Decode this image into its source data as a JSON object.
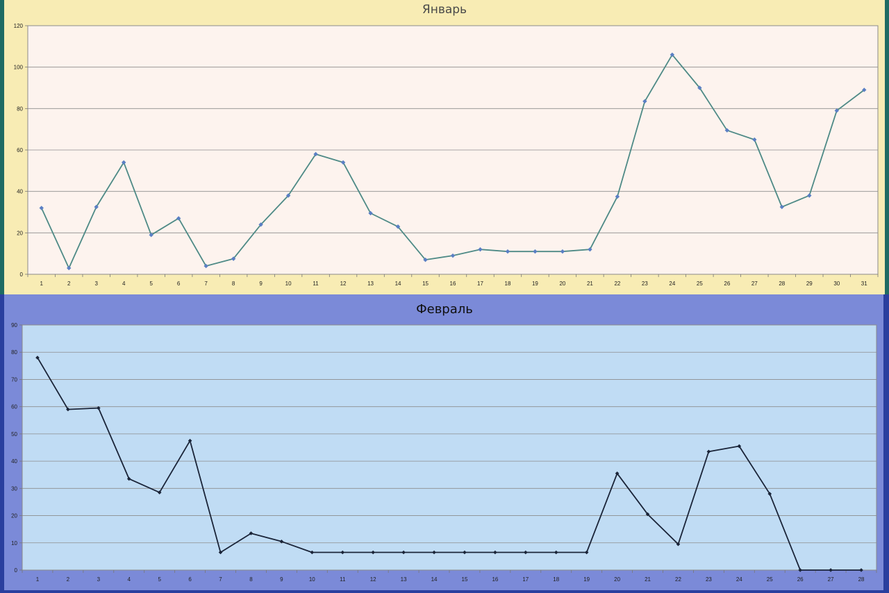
{
  "chart_data": [
    {
      "type": "line",
      "title": "Январь",
      "categories": [
        "1",
        "2",
        "3",
        "4",
        "5",
        "6",
        "7",
        "8",
        "9",
        "10",
        "11",
        "12",
        "13",
        "14",
        "15",
        "16",
        "17",
        "18",
        "19",
        "20",
        "21",
        "22",
        "23",
        "24",
        "25",
        "26",
        "27",
        "28",
        "29",
        "30",
        "31"
      ],
      "values": [
        32,
        3,
        32.5,
        54,
        19,
        27,
        4,
        7.5,
        24,
        38,
        58,
        54,
        29.5,
        23,
        7,
        9,
        12,
        11,
        11,
        11,
        12,
        37.5,
        83.5,
        106,
        90,
        69.5,
        65,
        32.5,
        38,
        79,
        89
      ],
      "ylim": [
        0,
        120
      ],
      "yticks": [
        0,
        20,
        40,
        60,
        80,
        100,
        120
      ],
      "grid": true,
      "colors": {
        "line": "#4e8a86",
        "marker": "#5a7fc4",
        "plot_bg": "#fdf3ee",
        "panel_bg": "#f8ecb4"
      }
    },
    {
      "type": "line",
      "title": "Февраль",
      "categories": [
        "1",
        "2",
        "3",
        "4",
        "5",
        "6",
        "7",
        "8",
        "9",
        "10",
        "11",
        "12",
        "13",
        "14",
        "15",
        "16",
        "17",
        "18",
        "19",
        "20",
        "21",
        "22",
        "23",
        "24",
        "25",
        "26",
        "27",
        "28"
      ],
      "values": [
        78,
        59,
        59.5,
        33.5,
        28.5,
        47.5,
        6.5,
        13.5,
        10.5,
        6.5,
        6.5,
        6.5,
        6.5,
        6.5,
        6.5,
        6.5,
        6.5,
        6.5,
        6.5,
        35.5,
        20.5,
        9.5,
        43.5,
        45.5,
        28,
        0,
        0,
        0
      ],
      "ylim": [
        0,
        90
      ],
      "yticks": [
        0,
        10,
        20,
        30,
        40,
        50,
        60,
        70,
        80,
        90
      ],
      "grid": true,
      "colors": {
        "line": "#1a2438",
        "marker": "#1a2438",
        "plot_bg": "#c0dcf4",
        "panel_bg": "#7b8ad8"
      }
    }
  ]
}
